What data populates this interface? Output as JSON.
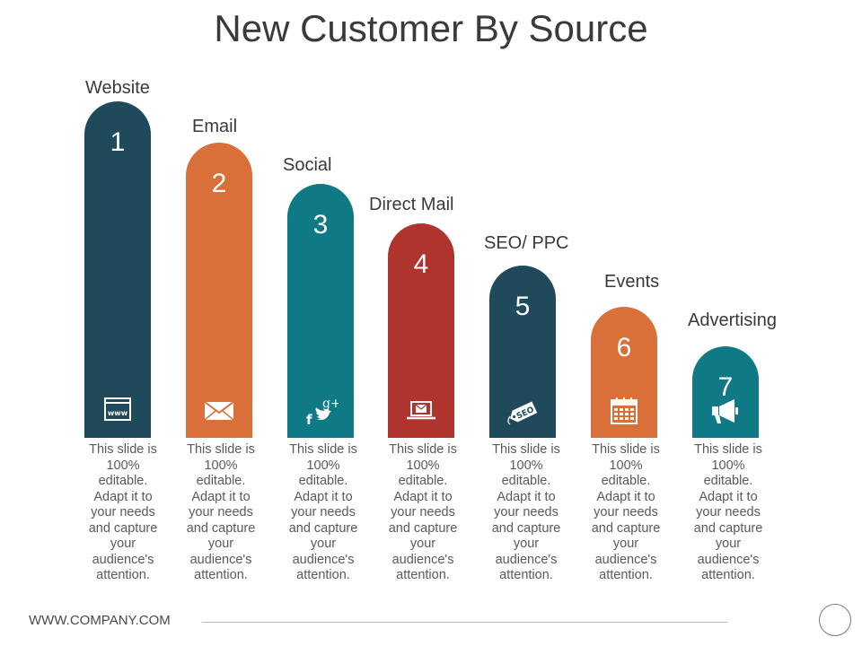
{
  "title": "New Customer By Source",
  "colors": {
    "navy": "#1f4a5c",
    "orange": "#d9703a",
    "teal": "#0f7a85",
    "red": "#b0342e"
  },
  "sources": [
    {
      "label": "Website",
      "number": "1",
      "icon": "www-browser-icon",
      "color": "#1f4a5c",
      "description": "This slide is 100% editable. Adapt it to your needs and capture your audience's attention."
    },
    {
      "label": "Email",
      "number": "2",
      "icon": "envelope-icon",
      "color": "#d9703a",
      "description": "This slide is 100% editable. Adapt it to your needs and capture your audience's attention."
    },
    {
      "label": "Social",
      "number": "3",
      "icon": "social-media-icon",
      "color": "#0f7a85",
      "description": "This slide is 100% editable. Adapt it to your needs and capture your audience's attention."
    },
    {
      "label": "Direct Mail",
      "number": "4",
      "icon": "laptop-mail-icon",
      "color": "#b0342e",
      "description": "This slide is 100% editable. Adapt it to your needs and capture your audience's attention."
    },
    {
      "label": "SEO/ PPC",
      "number": "5",
      "icon": "seo-tag-icon",
      "color": "#1f4a5c",
      "description": "This slide is 100% editable. Adapt it to your needs and capture your audience's attention."
    },
    {
      "label": "Events",
      "number": "6",
      "icon": "calendar-icon",
      "color": "#d9703a",
      "description": "This slide is 100% editable. Adapt it to your needs and capture your audience's attention."
    },
    {
      "label": "Advertising",
      "number": "7",
      "icon": "megaphone-icon",
      "color": "#0f7a85",
      "description": "This slide is 100% editable. Adapt it to your needs and capture your audience's attention."
    }
  ],
  "footer": {
    "url": "WWW.COMPANY.COM"
  }
}
